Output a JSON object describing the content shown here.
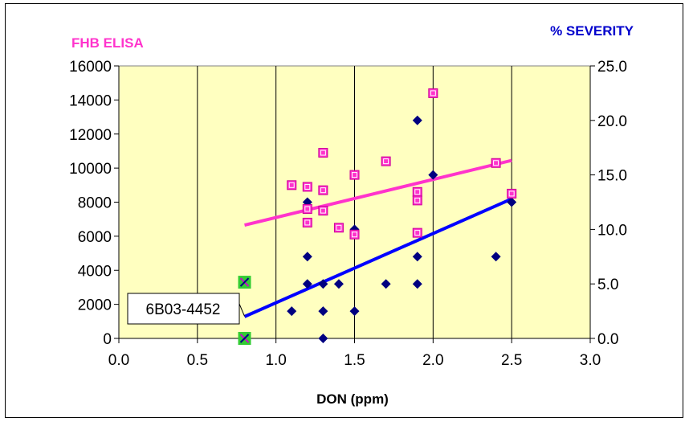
{
  "chart_data": {
    "type": "scatter",
    "xlabel": "DON (ppm)",
    "ylabel_left": "FHB ELISA",
    "ylabel_right": "% SEVERITY",
    "xlim": [
      0,
      3
    ],
    "ylim_left": [
      0,
      16000
    ],
    "ylim_right": [
      0,
      25
    ],
    "x_ticks": [
      "0.0",
      "0.5",
      "1.0",
      "1.5",
      "2.0",
      "2.5",
      "3.0"
    ],
    "y_left_ticks": [
      "0",
      "2000",
      "4000",
      "6000",
      "8000",
      "10000",
      "12000",
      "14000",
      "16000"
    ],
    "y_right_ticks": [
      "0.0",
      "5.0",
      "10.0",
      "15.0",
      "20.0",
      "25.0"
    ],
    "grid": "vertical",
    "plot_background": "#ffffc0",
    "series": [
      {
        "axis": "left",
        "marker": "square",
        "color": "#ff33cc",
        "points": [
          [
            1.1,
            9000
          ],
          [
            1.2,
            8900
          ],
          [
            1.2,
            7600
          ],
          [
            1.2,
            6800
          ],
          [
            1.3,
            10900
          ],
          [
            1.3,
            8700
          ],
          [
            1.3,
            7500
          ],
          [
            1.4,
            6500
          ],
          [
            1.5,
            9600
          ],
          [
            1.5,
            6100
          ],
          [
            1.7,
            10400
          ],
          [
            1.9,
            8600
          ],
          [
            1.9,
            8100
          ],
          [
            1.9,
            6200
          ],
          [
            2.0,
            14400
          ],
          [
            2.4,
            10300
          ],
          [
            2.5,
            8500
          ]
        ],
        "trendline": [
          [
            0.8,
            6650
          ],
          [
            2.5,
            10450
          ]
        ]
      },
      {
        "axis": "right",
        "marker": "diamond",
        "color": "#000080",
        "points": [
          [
            1.1,
            2.5
          ],
          [
            1.2,
            12.5
          ],
          [
            1.2,
            7.5
          ],
          [
            1.2,
            5.0
          ],
          [
            1.3,
            5.0
          ],
          [
            1.3,
            2.5
          ],
          [
            1.3,
            0.0
          ],
          [
            1.4,
            5.0
          ],
          [
            1.5,
            10.0
          ],
          [
            1.5,
            2.5
          ],
          [
            1.7,
            5.0
          ],
          [
            1.9,
            20.0
          ],
          [
            1.9,
            7.5
          ],
          [
            1.9,
            5.0
          ],
          [
            2.0,
            15.0
          ],
          [
            2.4,
            7.5
          ],
          [
            2.5,
            12.5
          ]
        ],
        "trendline": [
          [
            0.8,
            2.0
          ],
          [
            2.5,
            12.8
          ]
        ]
      }
    ],
    "highlighted_points": [
      {
        "x": 0.8,
        "y": 3300,
        "axis": "left",
        "color": "#33cc33"
      },
      {
        "x": 0.8,
        "y": 0,
        "axis": "left",
        "color": "#33cc33"
      }
    ],
    "annotation": {
      "text": "6B03-4452",
      "points_to": [
        0.8,
        1300
      ]
    },
    "colors": {
      "left_title": "#ff33cc",
      "right_title": "#0000cc",
      "pink_trend": "#ff33cc",
      "blue_trend": "#0000ff"
    }
  }
}
